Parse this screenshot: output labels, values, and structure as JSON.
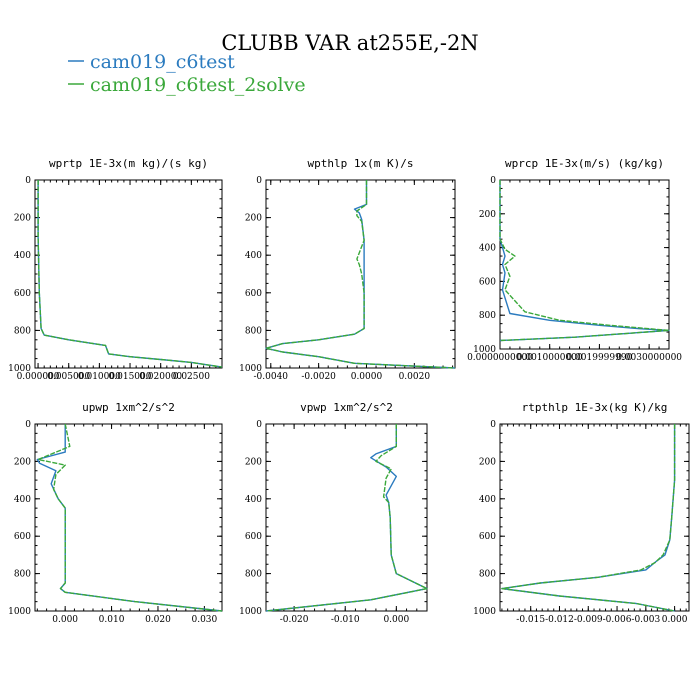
{
  "chart_data": {
    "title": "CLUBB VAR at255E,-2N",
    "legend": [
      {
        "name": "cam019_c6test",
        "color": "#2b7bbf"
      },
      {
        "name": "cam019_c6test_2solve",
        "color": "#3aa83a"
      }
    ],
    "panels": [
      {
        "type": "line",
        "title": "wprtp  1E-3x(m kg)/(s kg)",
        "xlim": [
          -0.0005,
          0.03
        ],
        "ylim": [
          0,
          1000
        ],
        "yreversed": true,
        "xticks": [
          0.0,
          0.005,
          0.01,
          0.015,
          0.02,
          0.025
        ],
        "xtick_labels": [
          "0.000000",
          "0.005000",
          "0.010000",
          "0.015000",
          "0.020000",
          "0.02500"
        ],
        "yticks": [
          0,
          200,
          400,
          600,
          800,
          1000
        ],
        "series": [
          {
            "name": "cam019_c6test",
            "x": [
              0.0,
              0.0,
              0.0002,
              0.0005,
              0.001,
              0.005,
              0.009,
              0.011,
              0.0115,
              0.015,
              0.02,
              0.025,
              0.03
            ],
            "y": [
              0,
              300,
              600,
              790,
              825,
              850,
              870,
              880,
              925,
              940,
              955,
              970,
              995
            ]
          },
          {
            "name": "cam019_c6test_2solve",
            "x": [
              0.0,
              0.0,
              0.0002,
              0.0005,
              0.001,
              0.005,
              0.009,
              0.011,
              0.0115,
              0.015,
              0.02,
              0.025,
              0.03
            ],
            "y": [
              0,
              300,
              600,
              790,
              825,
              850,
              870,
              880,
              925,
              940,
              955,
              970,
              995
            ]
          }
        ]
      },
      {
        "type": "line",
        "title": "wpthlp  1x(m K)/s",
        "xlim": [
          -0.0042,
          0.0037
        ],
        "ylim": [
          0,
          1000
        ],
        "yreversed": true,
        "xticks": [
          -0.004,
          -0.002,
          0.0,
          0.002
        ],
        "xtick_labels": [
          "-0.0040",
          "-0.0020",
          "0.0000",
          "0.0020"
        ],
        "yticks": [
          0,
          200,
          400,
          600,
          800,
          1000
        ],
        "series": [
          {
            "name": "cam019_c6test",
            "x": [
              0.0,
              0.0,
              -0.0005,
              -0.0003,
              -0.0002,
              -0.0001,
              -0.0001,
              -0.0001,
              -0.0001,
              -0.0001,
              -0.0001,
              -0.0001,
              -0.0005,
              -0.002,
              -0.0035,
              -0.0042,
              -0.0035,
              -0.002,
              -0.0005,
              0.0037
            ],
            "y": [
              0,
              130,
              155,
              175,
              210,
              320,
              400,
              430,
              500,
              600,
              700,
              790,
              820,
              850,
              870,
              895,
              915,
              940,
              975,
              1000
            ]
          },
          {
            "name": "cam019_c6test_2solve",
            "x": [
              0.0,
              0.0,
              -0.0004,
              -0.0004,
              -0.0002,
              -0.0001,
              -0.0004,
              -0.0003,
              -0.0002,
              -0.0001,
              -0.0001,
              -0.0001,
              -0.0005,
              -0.002,
              -0.0035,
              -0.0042,
              -0.0035,
              -0.002,
              -0.0005,
              0.0037
            ],
            "y": [
              0,
              130,
              165,
              190,
              220,
              320,
              420,
              450,
              500,
              600,
              700,
              790,
              820,
              850,
              870,
              895,
              915,
              940,
              975,
              1000
            ]
          }
        ]
      },
      {
        "type": "line",
        "title": "wprcp  1E-3x(m/s) (kg/kg)",
        "xlim": [
          0.0,
          0.0034
        ],
        "ylim": [
          0,
          1000
        ],
        "yreversed": true,
        "xticks": [
          0.0,
          0.001,
          0.002,
          0.003
        ],
        "xtick_labels": [
          "0.0000000000",
          "0.0010000000",
          "0.0019999990",
          "0.0030000000"
        ],
        "yticks": [
          0,
          200,
          400,
          600,
          800,
          1000
        ],
        "series": [
          {
            "name": "cam019_c6test",
            "x": [
              0.0,
              0.0,
              5e-05,
              0.0001,
              5e-05,
              0.0001,
              5e-05,
              0.0002,
              0.001,
              0.002,
              0.0028,
              0.0034,
              0.0015,
              0.0
            ],
            "y": [
              0,
              350,
              400,
              450,
              500,
              550,
              650,
              790,
              830,
              860,
              880,
              890,
              930,
              950
            ]
          },
          {
            "name": "cam019_c6test_2solve",
            "x": [
              0.0,
              0.0,
              0.0001,
              0.0003,
              0.0001,
              0.0002,
              0.0001,
              0.0005,
              0.0012,
              0.0022,
              0.003,
              0.0034,
              0.0015,
              0.0
            ],
            "y": [
              0,
              350,
              410,
              450,
              500,
              570,
              650,
              780,
              830,
              860,
              880,
              890,
              930,
              950
            ]
          }
        ]
      },
      {
        "type": "line",
        "title": "upwp  1xm^2/s^2",
        "xlim": [
          -0.0065,
          0.0338
        ],
        "ylim": [
          0,
          1000
        ],
        "yreversed": true,
        "xticks": [
          0.0,
          0.01,
          0.02,
          0.03
        ],
        "xtick_labels": [
          "0.000",
          "0.010",
          "0.020",
          "0.030"
        ],
        "yticks": [
          0,
          200,
          400,
          600,
          800,
          1000
        ],
        "series": [
          {
            "name": "cam019_c6test",
            "x": [
              0.0,
              0.0,
              -0.006,
              -0.0055,
              -0.002,
              -0.003,
              -0.0015,
              0.0,
              0.0,
              0.0,
              0.0,
              -0.001,
              0.0,
              0.015,
              0.0338
            ],
            "y": [
              0,
              150,
              190,
              210,
              250,
              320,
              400,
              450,
              600,
              750,
              850,
              880,
              900,
              950,
              1000
            ]
          },
          {
            "name": "cam019_c6test_2solve",
            "x": [
              0.0,
              0.001,
              -0.0058,
              0.0,
              -0.002,
              -0.0025,
              -0.0015,
              0.0,
              0.0,
              0.0,
              0.0,
              -0.001,
              0.0,
              0.015,
              0.0338
            ],
            "y": [
              0,
              120,
              190,
              220,
              270,
              350,
              400,
              450,
              600,
              750,
              850,
              880,
              900,
              950,
              1000
            ]
          }
        ]
      },
      {
        "type": "line",
        "title": "vpwp  1xm^2/s^2",
        "xlim": [
          -0.0255,
          0.006
        ],
        "ylim": [
          0,
          1000
        ],
        "yreversed": true,
        "xticks": [
          -0.02,
          -0.01,
          0.0
        ],
        "xtick_labels": [
          "-0.020",
          "-0.010",
          "0.000"
        ],
        "yticks": [
          0,
          200,
          400,
          600,
          800,
          1000
        ],
        "series": [
          {
            "name": "cam019_c6test",
            "x": [
              0.0,
              0.0,
              -0.004,
              -0.005,
              -0.002,
              0.0,
              -0.002,
              -0.0015,
              -0.0012,
              -0.001,
              0.0,
              0.006,
              -0.005,
              -0.0255
            ],
            "y": [
              0,
              120,
              160,
              180,
              230,
              280,
              380,
              420,
              500,
              700,
              800,
              880,
              940,
              1000
            ]
          },
          {
            "name": "cam019_c6test_2solve",
            "x": [
              0.0,
              0.0,
              -0.003,
              -0.004,
              -0.001,
              -0.002,
              -0.0025,
              -0.0015,
              -0.0012,
              -0.001,
              0.0,
              0.006,
              -0.005,
              -0.0255
            ],
            "y": [
              0,
              120,
              170,
              200,
              240,
              290,
              390,
              420,
              500,
              700,
              800,
              880,
              940,
              1000
            ]
          }
        ]
      },
      {
        "type": "line",
        "title": "rtpthlp  1E-3x(kg K)/kg",
        "xlim": [
          -0.0182,
          0.0015
        ],
        "ylim": [
          0,
          1000
        ],
        "yreversed": true,
        "xticks": [
          -0.015,
          -0.012,
          -0.009,
          -0.006,
          -0.003,
          0.0
        ],
        "xtick_labels": [
          "-0.015",
          "-0.012",
          "-0.009",
          "-0.006",
          "-0.003",
          "0.000"
        ],
        "yticks": [
          0,
          200,
          400,
          600,
          800,
          1000
        ],
        "series": [
          {
            "name": "cam019_c6test",
            "x": [
              0.0,
              0.0,
              -0.0003,
              -0.0005,
              -0.001,
              -0.0018,
              -0.003,
              -0.008,
              -0.014,
              -0.018,
              -0.012,
              -0.004,
              0.0
            ],
            "y": [
              0,
              300,
              500,
              620,
              700,
              730,
              780,
              820,
              850,
              880,
              920,
              960,
              1000
            ]
          },
          {
            "name": "cam019_c6test_2solve",
            "x": [
              0.0,
              0.0,
              -0.0003,
              -0.0005,
              -0.0012,
              -0.002,
              -0.0035,
              -0.008,
              -0.014,
              -0.018,
              -0.012,
              -0.004,
              0.0
            ],
            "y": [
              0,
              300,
              500,
              620,
              700,
              740,
              780,
              820,
              850,
              880,
              920,
              960,
              1000
            ]
          }
        ]
      }
    ]
  }
}
